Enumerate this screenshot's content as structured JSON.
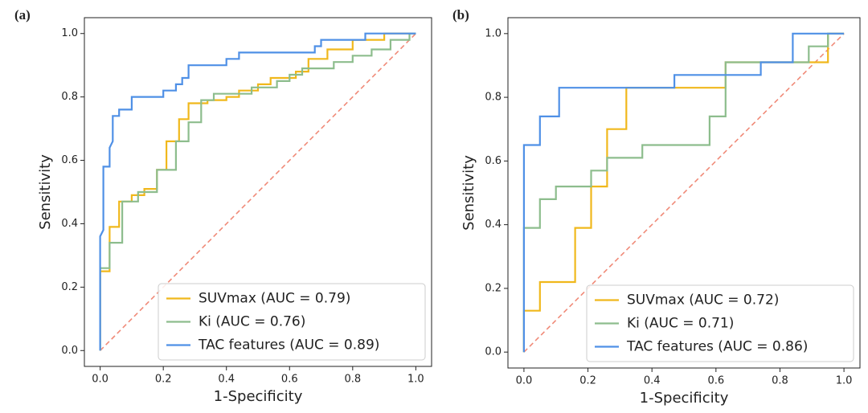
{
  "chart_data": [
    {
      "type": "line",
      "panel_label": "(a)",
      "xlabel": "1-Specificity",
      "ylabel": "Sensitivity",
      "xlim": [
        -0.05,
        1.05
      ],
      "ylim": [
        -0.05,
        1.05
      ],
      "xticks": [
        {
          "value": 0,
          "label": "0.0"
        },
        0.2,
        0.4,
        0.6,
        0.8,
        {
          "value": 1,
          "label": "1.0"
        }
      ],
      "yticks": [
        {
          "value": 0,
          "label": "0.0"
        },
        0.2,
        0.4,
        0.6,
        0.8,
        {
          "value": 1,
          "label": "1.0"
        }
      ],
      "legend": "lower right",
      "reference_line": {
        "x": [
          0,
          1
        ],
        "values": [
          0,
          1
        ],
        "color": "#f08a78"
      },
      "series": [
        {
          "name": "SUVmax (AUC = 0.79)",
          "color": "#f0b81c",
          "x": [
            0,
            0,
            0.03,
            0.03,
            0.06,
            0.06,
            0.1,
            0.1,
            0.14,
            0.14,
            0.18,
            0.18,
            0.21,
            0.21,
            0.25,
            0.25,
            0.28,
            0.28,
            0.34,
            0.34,
            0.4,
            0.4,
            0.44,
            0.44,
            0.5,
            0.5,
            0.54,
            0.54,
            0.62,
            0.62,
            0.66,
            0.66,
            0.72,
            0.72,
            0.8,
            0.8,
            0.9,
            0.9,
            1
          ],
          "values": [
            0,
            0.25,
            0.25,
            0.39,
            0.39,
            0.47,
            0.47,
            0.49,
            0.49,
            0.51,
            0.51,
            0.57,
            0.57,
            0.66,
            0.66,
            0.73,
            0.73,
            0.78,
            0.78,
            0.79,
            0.79,
            0.8,
            0.8,
            0.82,
            0.82,
            0.84,
            0.84,
            0.86,
            0.86,
            0.88,
            0.88,
            0.92,
            0.92,
            0.95,
            0.95,
            0.98,
            0.98,
            1,
            1
          ]
        },
        {
          "name": "Ki (AUC = 0.76)",
          "color": "#8dbd8d",
          "x": [
            0,
            0,
            0.03,
            0.03,
            0.07,
            0.07,
            0.12,
            0.12,
            0.18,
            0.18,
            0.24,
            0.24,
            0.28,
            0.28,
            0.32,
            0.32,
            0.36,
            0.36,
            0.48,
            0.48,
            0.56,
            0.56,
            0.6,
            0.6,
            0.64,
            0.64,
            0.74,
            0.74,
            0.8,
            0.8,
            0.86,
            0.86,
            0.92,
            0.92,
            0.98,
            0.98,
            1
          ],
          "values": [
            0,
            0.26,
            0.26,
            0.34,
            0.34,
            0.47,
            0.47,
            0.5,
            0.5,
            0.57,
            0.57,
            0.66,
            0.66,
            0.72,
            0.72,
            0.79,
            0.79,
            0.81,
            0.81,
            0.83,
            0.83,
            0.85,
            0.85,
            0.87,
            0.87,
            0.89,
            0.89,
            0.91,
            0.91,
            0.93,
            0.93,
            0.95,
            0.95,
            0.98,
            0.98,
            1,
            1
          ]
        },
        {
          "name": "TAC features (AUC = 0.89)",
          "color": "#4f90e6",
          "x": [
            0,
            0,
            0.01,
            0.01,
            0.03,
            0.03,
            0.04,
            0.04,
            0.06,
            0.06,
            0.1,
            0.1,
            0.2,
            0.2,
            0.24,
            0.24,
            0.26,
            0.26,
            0.28,
            0.28,
            0.4,
            0.4,
            0.44,
            0.44,
            0.68,
            0.68,
            0.7,
            0.7,
            0.84,
            0.84,
            1
          ],
          "values": [
            0,
            0.36,
            0.38,
            0.58,
            0.58,
            0.64,
            0.66,
            0.74,
            0.74,
            0.76,
            0.76,
            0.8,
            0.8,
            0.82,
            0.82,
            0.84,
            0.84,
            0.86,
            0.86,
            0.9,
            0.9,
            0.92,
            0.92,
            0.94,
            0.94,
            0.96,
            0.96,
            0.98,
            0.98,
            1,
            1
          ]
        }
      ]
    },
    {
      "type": "line",
      "panel_label": "(b)",
      "xlabel": "1-Specificity",
      "ylabel": "Sensitivity",
      "xlim": [
        -0.05,
        1.05
      ],
      "ylim": [
        -0.05,
        1.05
      ],
      "xticks": [
        {
          "value": 0,
          "label": "0.0"
        },
        0.2,
        0.4,
        0.6,
        0.8,
        {
          "value": 1,
          "label": "1.0"
        }
      ],
      "yticks": [
        {
          "value": 0,
          "label": "0.0"
        },
        0.2,
        0.4,
        0.6,
        0.8,
        {
          "value": 1,
          "label": "1.0"
        }
      ],
      "legend": "lower right",
      "reference_line": {
        "x": [
          0,
          1
        ],
        "values": [
          0,
          1
        ],
        "color": "#f08a78"
      },
      "series": [
        {
          "name": "SUVmax (AUC = 0.72)",
          "color": "#f0b81c",
          "x": [
            0,
            0,
            0.05,
            0.05,
            0.16,
            0.16,
            0.21,
            0.21,
            0.26,
            0.26,
            0.32,
            0.32,
            0.63,
            0.63,
            0.95,
            0.95,
            1
          ],
          "values": [
            0,
            0.13,
            0.13,
            0.22,
            0.22,
            0.39,
            0.39,
            0.52,
            0.52,
            0.7,
            0.7,
            0.83,
            0.83,
            0.91,
            0.91,
            1,
            1
          ]
        },
        {
          "name": "Ki (AUC = 0.71)",
          "color": "#8dbd8d",
          "x": [
            0,
            0,
            0.05,
            0.05,
            0.1,
            0.1,
            0.21,
            0.21,
            0.26,
            0.26,
            0.37,
            0.37,
            0.58,
            0.58,
            0.63,
            0.63,
            0.89,
            0.89,
            0.95,
            0.95,
            1
          ],
          "values": [
            0,
            0.39,
            0.39,
            0.48,
            0.48,
            0.52,
            0.52,
            0.57,
            0.57,
            0.61,
            0.61,
            0.65,
            0.65,
            0.74,
            0.74,
            0.91,
            0.91,
            0.96,
            0.96,
            1,
            1
          ]
        },
        {
          "name": "TAC features (AUC = 0.86)",
          "color": "#4f90e6",
          "x": [
            0,
            0,
            0.05,
            0.05,
            0.11,
            0.11,
            0.47,
            0.47,
            0.74,
            0.74,
            0.84,
            0.84,
            1
          ],
          "values": [
            0,
            0.65,
            0.65,
            0.74,
            0.74,
            0.83,
            0.83,
            0.87,
            0.87,
            0.91,
            0.91,
            1,
            1
          ]
        }
      ]
    }
  ]
}
